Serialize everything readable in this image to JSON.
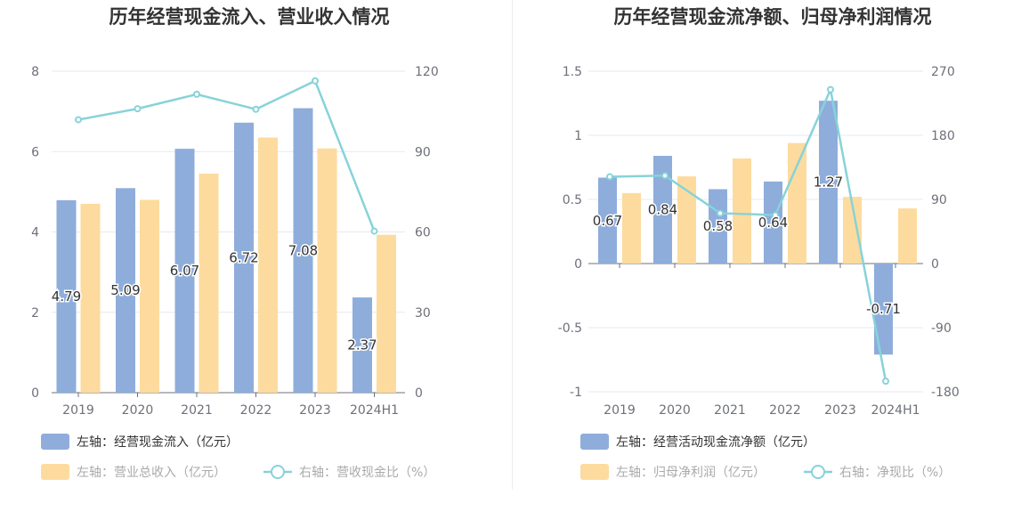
{
  "chart_data": [
    {
      "type": "bar",
      "title": "历年经营现金流入、营业收入情况",
      "categories": [
        "2019",
        "2020",
        "2021",
        "2022",
        "2023",
        "2024H1"
      ],
      "left_axis": {
        "min": 0,
        "max": 8,
        "ticks": [
          "0",
          "2",
          "4",
          "6",
          "8"
        ]
      },
      "right_axis": {
        "min": 0,
        "max": 120,
        "ticks": [
          "0",
          "30",
          "60",
          "90",
          "120"
        ]
      },
      "series": [
        {
          "name": "左轴：经营现金流入（亿元）",
          "kind": "bar",
          "axis": "left",
          "color": "#8eaddb",
          "values": [
            4.79,
            5.09,
            6.07,
            6.72,
            7.08,
            2.37
          ],
          "labels": [
            "4.79",
            "5.09",
            "6.07",
            "6.72",
            "7.08",
            "2.37"
          ]
        },
        {
          "name": "左轴：营业总收入（亿元）",
          "kind": "bar",
          "axis": "left",
          "color": "#fddb9e",
          "values": [
            4.7,
            4.8,
            5.45,
            6.35,
            6.08,
            3.93
          ]
        },
        {
          "name": "右轴：营收现金比（%）",
          "kind": "line",
          "axis": "right",
          "color": "#86d3d9",
          "values": [
            101.9,
            106.0,
            111.4,
            105.8,
            116.4,
            60.3
          ]
        }
      ],
      "legend_position": "bottom-left",
      "grid": true
    },
    {
      "type": "bar",
      "title": "历年经营现金流净额、归母净利润情况",
      "categories": [
        "2019",
        "2020",
        "2021",
        "2022",
        "2023",
        "2024H1"
      ],
      "left_axis": {
        "min": -1,
        "max": 1.5,
        "ticks": [
          "-1",
          "-0.5",
          "0",
          "0.5",
          "1",
          "1.5"
        ]
      },
      "right_axis": {
        "min": -180,
        "max": 270,
        "ticks": [
          "-180",
          "-90",
          "0",
          "90",
          "180",
          "270"
        ]
      },
      "series": [
        {
          "name": "左轴：经营活动现金流净额（亿元）",
          "kind": "bar",
          "axis": "left",
          "color": "#8eaddb",
          "values": [
            0.67,
            0.84,
            0.58,
            0.64,
            1.27,
            -0.71
          ],
          "labels": [
            "0.67",
            "0.84",
            "0.58",
            "0.64",
            "1.27",
            "-0.71"
          ]
        },
        {
          "name": "左轴：归母净利润（亿元）",
          "kind": "bar",
          "axis": "left",
          "color": "#fddb9e",
          "values": [
            0.55,
            0.68,
            0.82,
            0.94,
            0.52,
            0.43
          ]
        },
        {
          "name": "右轴：净现比（%）",
          "kind": "line",
          "axis": "right",
          "color": "#86d3d9",
          "values": [
            121.8,
            123.5,
            70.7,
            68.1,
            244.2,
            -165.1
          ]
        }
      ],
      "legend_position": "bottom-left",
      "grid": true
    }
  ]
}
